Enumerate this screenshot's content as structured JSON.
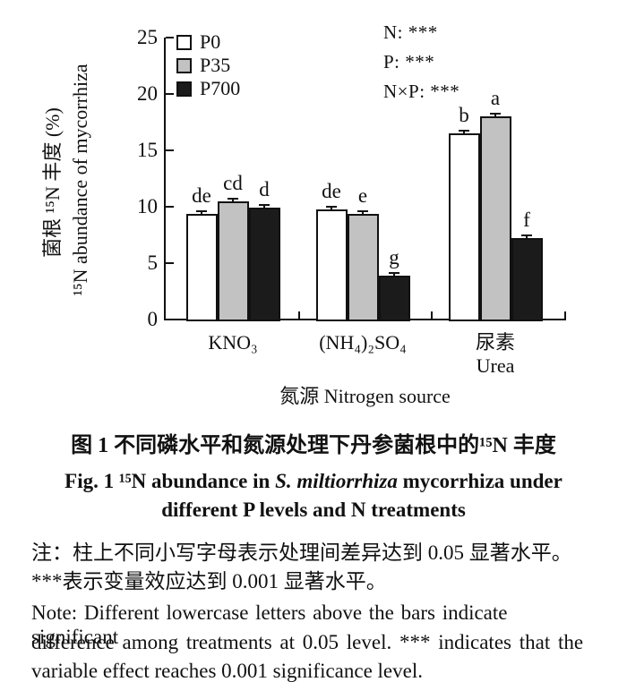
{
  "chart_data": {
    "type": "bar",
    "categories": [
      "KNO₃",
      "(NH₄)₂SO₄",
      "尿素 Urea"
    ],
    "category_label_lines": [
      [
        "KNO₃"
      ],
      [
        "(NH₄)₂SO₄"
      ],
      [
        "尿素",
        "Urea"
      ]
    ],
    "series": [
      {
        "name": "P0",
        "color": "#ffffff",
        "values": [
          9.4,
          9.8,
          16.5
        ],
        "errors": [
          0.2,
          0.2,
          0.2
        ],
        "letters": [
          "de",
          "de",
          "b"
        ]
      },
      {
        "name": "P35",
        "color": "#c2c2c2",
        "values": [
          10.5,
          9.4,
          18.0
        ],
        "errors": [
          0.2,
          0.2,
          0.2
        ],
        "letters": [
          "cd",
          "e",
          "a"
        ]
      },
      {
        "name": "P700",
        "color": "#1b1b1b",
        "values": [
          9.9,
          3.9,
          7.2
        ],
        "errors": [
          0.2,
          0.2,
          0.2
        ],
        "letters": [
          "d",
          "g",
          "f"
        ]
      }
    ],
    "annotations": [
      "N: ***",
      "P: ***",
      "N×P: ***"
    ],
    "ylabel_zh": "菌根 ¹⁵N 丰度 (%)",
    "ylabel_en": "¹⁵N abundance of mycorrhiza",
    "xlabel": "氮源 Nitrogen source",
    "ylim": [
      0,
      25
    ],
    "yticks": [
      0,
      5,
      10,
      15,
      20,
      25
    ],
    "grid": false,
    "legend_position": "top-left-inside"
  },
  "caption": {
    "zh": "图 1  不同磷水平和氮源处理下丹参菌根中的¹⁵N 丰度",
    "en_prefix": "Fig. 1  ¹⁵N abundance in ",
    "en_italic": "S. miltiorrhiza",
    "en_suffix": " mycorrhiza under",
    "en_line2": "different P levels and N treatments"
  },
  "note": {
    "zh1": "注：柱上不同小写字母表示处理间差异达到 0.05 显著水平。",
    "zh2": "***表示变量效应达到 0.001 显著水平。",
    "en1": "Note: Different lowercase letters above the bars indicate significant",
    "en2": "difference among treatments at 0.05 level. *** indicates that the",
    "en3": "variable effect reaches 0.001 significance level."
  },
  "colors": {
    "axis": "#111111",
    "bar_border": "#111111"
  }
}
